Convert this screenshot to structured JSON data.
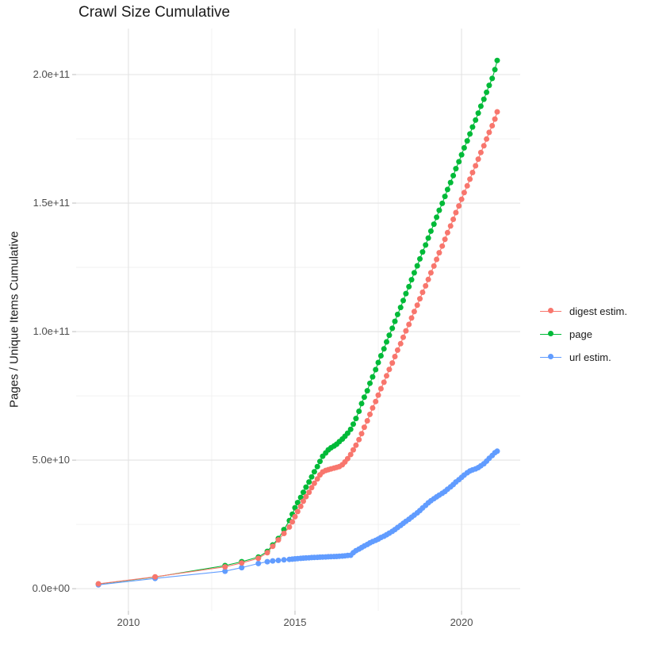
{
  "title": "Crawl Size Cumulative",
  "axes": {
    "y_title": "Pages / Unique Items Cumulative",
    "x_tick_labels": [
      "2010",
      "2015",
      "2020"
    ],
    "y_tick_labels": [
      "0.0e+00",
      "5.0e+10",
      "1.0e+11",
      "1.5e+11",
      "2.0e+11"
    ]
  },
  "legend": {
    "position": "right",
    "items": [
      {
        "label": "digest estim.",
        "color": "#F8766D"
      },
      {
        "label": "page",
        "color": "#00BA38"
      },
      {
        "label": "url estim.",
        "color": "#619CFF"
      }
    ]
  },
  "chart_data": {
    "type": "scatter",
    "title": "Crawl Size Cumulative",
    "xlabel": "",
    "ylabel": "Pages / Unique Items Cumulative",
    "x_range": [
      2008.43,
      2021.76
    ],
    "y_range": [
      -8600000000.0,
      217900000000.0
    ],
    "x_major_ticks": [
      2010,
      2015,
      2020
    ],
    "x_minor_ticks": [
      2012.5,
      2017.5
    ],
    "y_major_ticks": [
      0,
      50000000000.0,
      100000000000.0,
      150000000000.0,
      200000000000.0
    ],
    "y_minor_ticks": [
      25000000000.0,
      75000000000.0,
      125000000000.0,
      175000000000.0
    ],
    "grid": true,
    "legend_position": "right",
    "value_unit": 1000000000.0,
    "value_unit_note": "series point y-values are in billions (multiply by 1e9)",
    "draw_order": [
      1,
      2,
      0
    ],
    "point_radius": 3.5,
    "series": [
      {
        "name": "digest estim.",
        "color": "#F8766D",
        "points": [
          [
            2009.1,
            1.9
          ],
          [
            2010.8,
            4.6
          ],
          [
            2012.9,
            8.5
          ],
          [
            2013.4,
            10
          ],
          [
            2013.9,
            11.8
          ],
          [
            2014.17,
            14
          ],
          [
            2014.33,
            16.5
          ],
          [
            2014.5,
            19
          ],
          [
            2014.67,
            21.5
          ],
          [
            2014.83,
            24
          ],
          [
            2014.92,
            26
          ],
          [
            2015.0,
            28
          ],
          [
            2015.08,
            30
          ],
          [
            2015.17,
            32
          ],
          [
            2015.25,
            34
          ],
          [
            2015.33,
            35.8
          ],
          [
            2015.42,
            37.5
          ],
          [
            2015.5,
            39.3
          ],
          [
            2015.58,
            41
          ],
          [
            2015.67,
            42.7
          ],
          [
            2015.75,
            44.3
          ],
          [
            2015.83,
            45.4
          ],
          [
            2015.92,
            46
          ],
          [
            2016.0,
            46.3
          ],
          [
            2016.08,
            46.6
          ],
          [
            2016.17,
            46.9
          ],
          [
            2016.25,
            47.2
          ],
          [
            2016.33,
            47.5
          ],
          [
            2016.42,
            48.2
          ],
          [
            2016.5,
            49.3
          ],
          [
            2016.58,
            50.6
          ],
          [
            2016.67,
            52.2
          ],
          [
            2016.75,
            54
          ],
          [
            2016.83,
            55.8
          ],
          [
            2016.92,
            58
          ],
          [
            2017.0,
            60.3
          ],
          [
            2017.08,
            62.8
          ],
          [
            2017.17,
            65.3
          ],
          [
            2017.25,
            67.8
          ],
          [
            2017.33,
            70.3
          ],
          [
            2017.42,
            72.8
          ],
          [
            2017.5,
            75.3
          ],
          [
            2017.58,
            77.8
          ],
          [
            2017.67,
            80.3
          ],
          [
            2017.75,
            82.8
          ],
          [
            2017.83,
            85.3
          ],
          [
            2017.92,
            87.8
          ],
          [
            2018.0,
            90.3
          ],
          [
            2018.08,
            92.8
          ],
          [
            2018.17,
            95.3
          ],
          [
            2018.25,
            97.8
          ],
          [
            2018.33,
            100.3
          ],
          [
            2018.42,
            102.8
          ],
          [
            2018.5,
            105.3
          ],
          [
            2018.58,
            107.8
          ],
          [
            2018.67,
            110.3
          ],
          [
            2018.75,
            112.8
          ],
          [
            2018.83,
            115.3
          ],
          [
            2018.92,
            117.8
          ],
          [
            2019.0,
            120.3
          ],
          [
            2019.08,
            122.9
          ],
          [
            2019.17,
            125.5
          ],
          [
            2019.25,
            128.1
          ],
          [
            2019.33,
            130.7
          ],
          [
            2019.42,
            133.3
          ],
          [
            2019.5,
            135.9
          ],
          [
            2019.58,
            138.5
          ],
          [
            2019.67,
            141.1
          ],
          [
            2019.75,
            143.7
          ],
          [
            2019.83,
            146.3
          ],
          [
            2019.92,
            148.9
          ],
          [
            2020.0,
            151.5
          ],
          [
            2020.08,
            154.1
          ],
          [
            2020.17,
            156.7
          ],
          [
            2020.25,
            159.3
          ],
          [
            2020.33,
            161.9
          ],
          [
            2020.42,
            164.5
          ],
          [
            2020.5,
            167.1
          ],
          [
            2020.58,
            169.7
          ],
          [
            2020.67,
            172.3
          ],
          [
            2020.75,
            174.9
          ],
          [
            2020.83,
            177.5
          ],
          [
            2020.92,
            180.1
          ],
          [
            2021.0,
            182.7
          ],
          [
            2021.07,
            185.5
          ]
        ]
      },
      {
        "name": "page",
        "color": "#00BA38",
        "points": [
          [
            2009.1,
            1.8
          ],
          [
            2010.8,
            4.5
          ],
          [
            2012.9,
            9
          ],
          [
            2013.4,
            10.5
          ],
          [
            2013.9,
            12.3
          ],
          [
            2014.17,
            14.5
          ],
          [
            2014.33,
            17
          ],
          [
            2014.5,
            19.5
          ],
          [
            2014.67,
            23
          ],
          [
            2014.83,
            26.5
          ],
          [
            2014.92,
            29
          ],
          [
            2015.0,
            31.5
          ],
          [
            2015.08,
            33.5
          ],
          [
            2015.17,
            35.5
          ],
          [
            2015.25,
            37.5
          ],
          [
            2015.33,
            39.5
          ],
          [
            2015.42,
            41.5
          ],
          [
            2015.5,
            43.5
          ],
          [
            2015.58,
            45.5
          ],
          [
            2015.67,
            47.5
          ],
          [
            2015.75,
            49.5
          ],
          [
            2015.83,
            51.5
          ],
          [
            2015.92,
            52.8
          ],
          [
            2016.0,
            54
          ],
          [
            2016.08,
            54.8
          ],
          [
            2016.17,
            55.5
          ],
          [
            2016.25,
            56.2
          ],
          [
            2016.33,
            57.2
          ],
          [
            2016.42,
            58.2
          ],
          [
            2016.5,
            59.3
          ],
          [
            2016.58,
            60.5
          ],
          [
            2016.67,
            62
          ],
          [
            2016.75,
            64
          ],
          [
            2016.83,
            66.2
          ],
          [
            2016.92,
            69
          ],
          [
            2017.0,
            72
          ],
          [
            2017.08,
            74.5
          ],
          [
            2017.17,
            77
          ],
          [
            2017.25,
            79.9
          ],
          [
            2017.33,
            82.4
          ],
          [
            2017.42,
            85.2
          ],
          [
            2017.5,
            88
          ],
          [
            2017.58,
            90.6
          ],
          [
            2017.67,
            93.3
          ],
          [
            2017.75,
            96
          ],
          [
            2017.83,
            98.6
          ],
          [
            2017.92,
            101.3
          ],
          [
            2018.0,
            104
          ],
          [
            2018.08,
            106.7
          ],
          [
            2018.17,
            109.4
          ],
          [
            2018.25,
            112.1
          ],
          [
            2018.33,
            114.8
          ],
          [
            2018.42,
            117.5
          ],
          [
            2018.5,
            120.2
          ],
          [
            2018.58,
            122.9
          ],
          [
            2018.67,
            125.6
          ],
          [
            2018.75,
            128.3
          ],
          [
            2018.83,
            131
          ],
          [
            2018.92,
            133.7
          ],
          [
            2019.0,
            136.4
          ],
          [
            2019.08,
            139.1
          ],
          [
            2019.17,
            141.8
          ],
          [
            2019.25,
            144.5
          ],
          [
            2019.33,
            147.2
          ],
          [
            2019.42,
            149.9
          ],
          [
            2019.5,
            152.6
          ],
          [
            2019.58,
            155.3
          ],
          [
            2019.67,
            158
          ],
          [
            2019.75,
            160.7
          ],
          [
            2019.83,
            163.4
          ],
          [
            2019.92,
            166.1
          ],
          [
            2020.0,
            168.8
          ],
          [
            2020.08,
            171.5
          ],
          [
            2020.17,
            174.2
          ],
          [
            2020.25,
            176.9
          ],
          [
            2020.33,
            179.6
          ],
          [
            2020.42,
            182.3
          ],
          [
            2020.5,
            185
          ],
          [
            2020.58,
            187.7
          ],
          [
            2020.67,
            190.4
          ],
          [
            2020.75,
            193.1
          ],
          [
            2020.83,
            195.8
          ],
          [
            2020.92,
            198.5
          ],
          [
            2021.0,
            201.9
          ],
          [
            2021.07,
            205.5
          ]
        ]
      },
      {
        "name": "url estim.",
        "color": "#619CFF",
        "points": [
          [
            2009.1,
            1.5
          ],
          [
            2010.8,
            4
          ],
          [
            2012.9,
            6.8
          ],
          [
            2013.4,
            8.2
          ],
          [
            2013.9,
            9.8
          ],
          [
            2014.17,
            10.5
          ],
          [
            2014.33,
            10.8
          ],
          [
            2014.5,
            11
          ],
          [
            2014.67,
            11.2
          ],
          [
            2014.83,
            11.4
          ],
          [
            2014.92,
            11.5
          ],
          [
            2015.0,
            11.6
          ],
          [
            2015.08,
            11.7
          ],
          [
            2015.17,
            11.8
          ],
          [
            2015.25,
            11.9
          ],
          [
            2015.33,
            11.95
          ],
          [
            2015.42,
            12
          ],
          [
            2015.5,
            12.1
          ],
          [
            2015.58,
            12.15
          ],
          [
            2015.67,
            12.2
          ],
          [
            2015.75,
            12.25
          ],
          [
            2015.83,
            12.3
          ],
          [
            2015.92,
            12.35
          ],
          [
            2016.0,
            12.4
          ],
          [
            2016.08,
            12.45
          ],
          [
            2016.17,
            12.5
          ],
          [
            2016.25,
            12.55
          ],
          [
            2016.33,
            12.6
          ],
          [
            2016.42,
            12.7
          ],
          [
            2016.5,
            12.8
          ],
          [
            2016.58,
            12.9
          ],
          [
            2016.67,
            13
          ],
          [
            2016.75,
            14
          ],
          [
            2016.83,
            14.8
          ],
          [
            2016.92,
            15.4
          ],
          [
            2017.0,
            16
          ],
          [
            2017.08,
            16.6
          ],
          [
            2017.17,
            17.2
          ],
          [
            2017.25,
            17.8
          ],
          [
            2017.33,
            18.3
          ],
          [
            2017.42,
            18.8
          ],
          [
            2017.5,
            19.3
          ],
          [
            2017.58,
            19.9
          ],
          [
            2017.67,
            20.4
          ],
          [
            2017.75,
            21
          ],
          [
            2017.83,
            21.6
          ],
          [
            2017.92,
            22.3
          ],
          [
            2018.0,
            23
          ],
          [
            2018.08,
            23.8
          ],
          [
            2018.17,
            24.6
          ],
          [
            2018.25,
            25.4
          ],
          [
            2018.33,
            26.2
          ],
          [
            2018.42,
            27
          ],
          [
            2018.5,
            27.8
          ],
          [
            2018.58,
            28.6
          ],
          [
            2018.67,
            29.5
          ],
          [
            2018.75,
            30.4
          ],
          [
            2018.83,
            31.4
          ],
          [
            2018.92,
            32.4
          ],
          [
            2019.0,
            33.4
          ],
          [
            2019.08,
            34.2
          ],
          [
            2019.17,
            35
          ],
          [
            2019.25,
            35.7
          ],
          [
            2019.33,
            36.4
          ],
          [
            2019.42,
            37.1
          ],
          [
            2019.5,
            37.8
          ],
          [
            2019.58,
            38.7
          ],
          [
            2019.67,
            39.6
          ],
          [
            2019.75,
            40.5
          ],
          [
            2019.83,
            41.5
          ],
          [
            2019.92,
            42.4
          ],
          [
            2020.0,
            43.3
          ],
          [
            2020.08,
            44.2
          ],
          [
            2020.17,
            45.1
          ],
          [
            2020.25,
            45.8
          ],
          [
            2020.33,
            46.2
          ],
          [
            2020.42,
            46.6
          ],
          [
            2020.5,
            47.1
          ],
          [
            2020.58,
            47.8
          ],
          [
            2020.67,
            48.6
          ],
          [
            2020.75,
            49.6
          ],
          [
            2020.83,
            50.7
          ],
          [
            2020.92,
            51.8
          ],
          [
            2021.0,
            52.9
          ],
          [
            2021.07,
            53.5
          ]
        ]
      }
    ]
  }
}
